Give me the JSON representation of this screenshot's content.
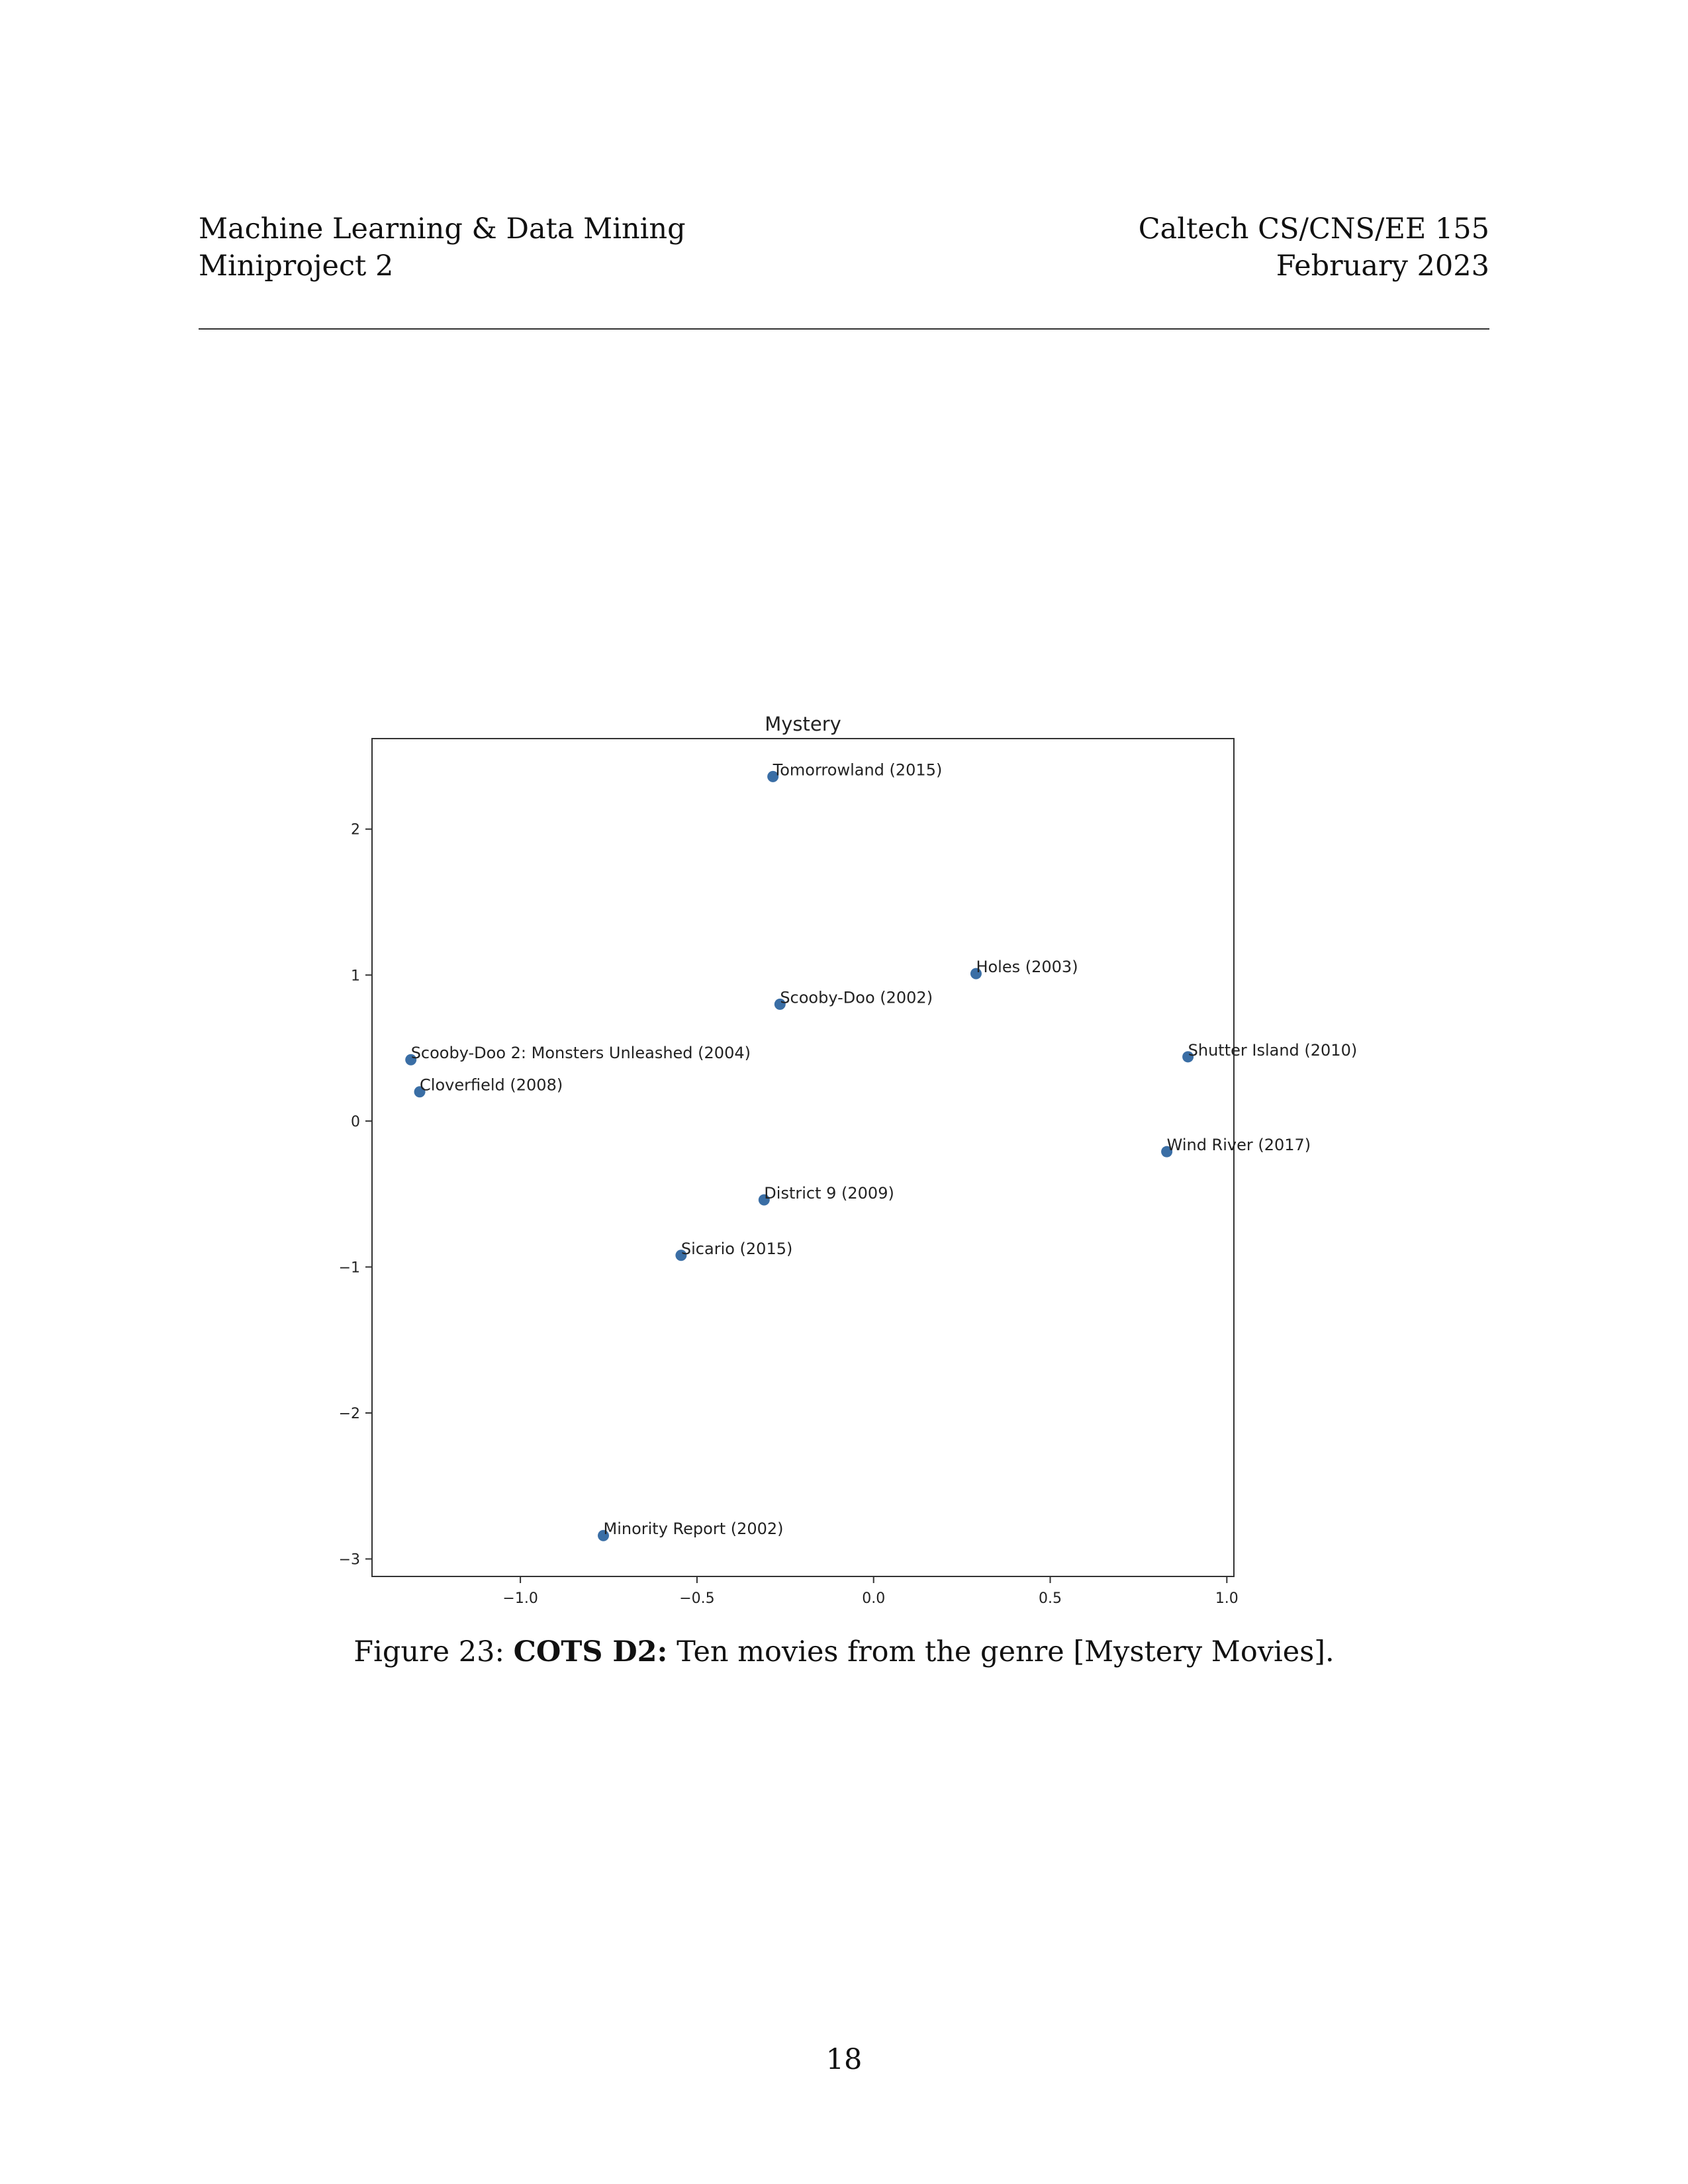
{
  "header": {
    "left_line1": "Machine Learning & Data Mining",
    "left_line2": "Miniproject 2",
    "right_line1": "Caltech CS/CNS/EE 155",
    "right_line2": "February 2023"
  },
  "figure": {
    "caption_prefix": "Figure 23: ",
    "caption_bold": "COTS D2:",
    "caption_rest": " Ten movies from the genre [Mystery Movies]."
  },
  "page_number": "18",
  "chart_data": {
    "type": "scatter",
    "title": "Mystery",
    "xlabel": "",
    "ylabel": "",
    "xlim": [
      -1.42,
      1.02
    ],
    "ylim": [
      -3.12,
      2.62
    ],
    "xticks": [
      -1.0,
      -0.5,
      0.0,
      0.5,
      1.0
    ],
    "xtick_labels": [
      "−1.0",
      "−0.5",
      "0.0",
      "0.5",
      "1.0"
    ],
    "yticks": [
      -3,
      -2,
      -1,
      0,
      1,
      2
    ],
    "ytick_labels": [
      "−3",
      "−2",
      "−1",
      "0",
      "1",
      "2"
    ],
    "grid": false,
    "point_color": "#3a6ea5",
    "points": [
      {
        "label": "Tomorrowland (2015)",
        "x": -0.285,
        "y": 2.36
      },
      {
        "label": "Holes (2003)",
        "x": 0.29,
        "y": 1.01
      },
      {
        "label": "Scooby-Doo (2002)",
        "x": -0.265,
        "y": 0.8
      },
      {
        "label": "Scooby-Doo 2: Monsters Unleashed (2004)",
        "x": -1.31,
        "y": 0.42
      },
      {
        "label": "Shutter Island (2010)",
        "x": 0.89,
        "y": 0.44
      },
      {
        "label": "Cloverfield (2008)",
        "x": -1.285,
        "y": 0.2
      },
      {
        "label": "Wind River (2017)",
        "x": 0.83,
        "y": -0.21
      },
      {
        "label": "District 9 (2009)",
        "x": -0.31,
        "y": -0.54
      },
      {
        "label": "Sicario (2015)",
        "x": -0.545,
        "y": -0.92
      },
      {
        "label": "Minority Report (2002)",
        "x": -0.765,
        "y": -2.84
      }
    ]
  }
}
